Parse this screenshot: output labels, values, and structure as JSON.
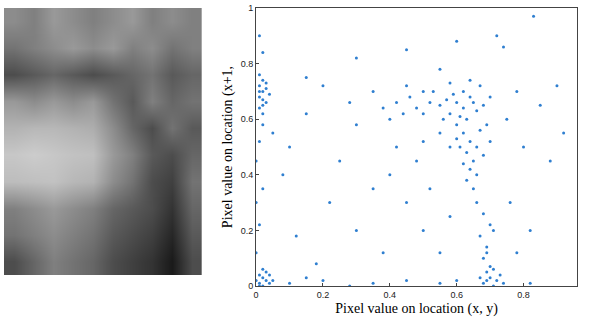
{
  "chart_data": [
    {
      "type": "heatmap",
      "cells": [
        [
          0.55,
          0.5,
          0.6,
          0.55,
          0.5,
          0.55,
          0.6,
          0.5,
          0.55,
          0.5
        ],
        [
          0.45,
          0.5,
          0.55,
          0.6,
          0.55,
          0.6,
          0.5,
          0.55,
          0.45,
          0.5
        ],
        [
          0.3,
          0.35,
          0.4,
          0.35,
          0.3,
          0.35,
          0.4,
          0.45,
          0.35,
          0.4
        ],
        [
          0.6,
          0.55,
          0.6,
          0.55,
          0.6,
          0.45,
          0.35,
          0.5,
          0.4,
          0.45
        ],
        [
          0.7,
          0.72,
          0.72,
          0.7,
          0.68,
          0.55,
          0.4,
          0.3,
          0.45,
          0.35
        ],
        [
          0.78,
          0.8,
          0.78,
          0.76,
          0.75,
          0.6,
          0.5,
          0.35,
          0.3,
          0.4
        ],
        [
          0.74,
          0.75,
          0.76,
          0.72,
          0.7,
          0.55,
          0.45,
          0.3,
          0.25,
          0.45
        ],
        [
          0.5,
          0.55,
          0.6,
          0.55,
          0.5,
          0.4,
          0.35,
          0.3,
          0.2,
          0.4
        ],
        [
          0.45,
          0.5,
          0.55,
          0.5,
          0.45,
          0.35,
          0.3,
          0.25,
          0.15,
          0.35
        ],
        [
          0.3,
          0.4,
          0.5,
          0.45,
          0.4,
          0.3,
          0.25,
          0.2,
          0.1,
          0.3
        ]
      ],
      "zlim": [
        0,
        1
      ],
      "tick_labels": false
    },
    {
      "type": "scatter",
      "xlabel": "Pixel value on location (x, y)",
      "ylabel": "Pixel value on location (x+1,",
      "color": "#2f7fd0",
      "marker": "dot",
      "grid": false,
      "xlim": [
        0,
        0.96
      ],
      "ylim": [
        0,
        1
      ],
      "xticks": [
        0,
        0.2,
        0.4,
        0.6,
        0.8
      ],
      "yticks": [
        0,
        0.2,
        0.4,
        0.6,
        0.8,
        1
      ],
      "x": [
        0.01,
        0.02,
        0.01,
        0.03,
        0.02,
        0.01,
        0.03,
        0.02,
        0.01,
        0.04,
        0.02,
        0.03,
        0.01,
        0.02,
        0.01,
        0.02,
        0.03,
        0.01,
        0.04,
        0.02,
        0.03,
        0.05,
        0.0,
        0.02,
        0.04,
        0.01,
        0.68,
        0.7,
        0.72,
        0.69,
        0.71,
        0.73,
        0.67,
        0.7,
        0.74,
        0.71,
        0.69,
        0.0,
        0.01,
        0.02,
        0.0,
        0.01,
        0.02,
        0.01,
        0.0,
        0.02,
        0.1,
        0.2,
        0.28,
        0.35,
        0.45,
        0.55,
        0.6,
        0.82,
        0.15,
        0.68,
        0.69,
        0.67,
        0.7,
        0.68,
        0.66,
        0.69,
        0.71,
        0.55,
        0.58,
        0.6,
        0.62,
        0.64,
        0.61,
        0.57,
        0.63,
        0.66,
        0.59,
        0.65,
        0.62,
        0.68,
        0.56,
        0.6,
        0.7,
        0.52,
        0.5,
        0.48,
        0.46,
        0.44,
        0.42,
        0.4,
        0.53,
        0.67,
        0.64,
        0.58,
        0.5,
        0.45,
        0.38,
        0.62,
        0.64,
        0.66,
        0.63,
        0.65,
        0.61,
        0.67,
        0.6,
        0.68,
        0.64,
        0.62,
        0.66,
        0.7,
        0.58,
        0.69,
        0.63,
        0.65,
        0.55,
        0.5,
        0.1,
        0.15,
        0.2,
        0.25,
        0.3,
        0.35,
        0.22,
        0.3,
        0.4,
        0.45,
        0.5,
        0.55,
        0.38,
        0.12,
        0.18,
        0.42,
        0.48,
        0.35,
        0.28,
        0.08,
        0.75,
        0.78,
        0.8,
        0.85,
        0.9,
        0.76,
        0.82,
        0.72,
        0.74,
        0.6,
        0.45,
        0.3,
        0.55,
        0.88,
        0.92,
        0.78,
        0.15,
        0.05,
        0.52,
        0.58,
        0.83
      ],
      "y": [
        0.72,
        0.7,
        0.68,
        0.66,
        0.74,
        0.64,
        0.71,
        0.62,
        0.76,
        0.69,
        0.67,
        0.73,
        0.7,
        0.65,
        0.01,
        0.03,
        0.02,
        0.04,
        0.01,
        0.0,
        0.05,
        0.02,
        0.02,
        0.06,
        0.04,
        0.0,
        0.01,
        0.03,
        0.02,
        0.05,
        0.0,
        0.04,
        0.03,
        0.07,
        0.01,
        0.06,
        0.02,
        0.12,
        0.22,
        0.35,
        0.45,
        0.52,
        0.84,
        0.9,
        0.3,
        0.58,
        0.01,
        0.02,
        0.0,
        0.01,
        0.02,
        0.01,
        0.02,
        0.01,
        0.03,
        0.1,
        0.14,
        0.18,
        0.22,
        0.26,
        0.3,
        0.12,
        0.2,
        0.65,
        0.62,
        0.66,
        0.64,
        0.68,
        0.61,
        0.67,
        0.6,
        0.63,
        0.69,
        0.66,
        0.7,
        0.65,
        0.6,
        0.58,
        0.68,
        0.66,
        0.62,
        0.64,
        0.68,
        0.62,
        0.66,
        0.6,
        0.7,
        0.72,
        0.74,
        0.73,
        0.7,
        0.72,
        0.64,
        0.55,
        0.52,
        0.5,
        0.48,
        0.45,
        0.5,
        0.56,
        0.53,
        0.47,
        0.42,
        0.44,
        0.4,
        0.52,
        0.5,
        0.58,
        0.38,
        0.35,
        0.55,
        0.52,
        0.5,
        0.62,
        0.72,
        0.45,
        0.58,
        0.7,
        0.3,
        0.2,
        0.4,
        0.3,
        0.2,
        0.12,
        0.12,
        0.18,
        0.08,
        0.5,
        0.45,
        0.35,
        0.66,
        0.4,
        0.6,
        0.7,
        0.5,
        0.65,
        0.72,
        0.3,
        0.2,
        0.9,
        0.86,
        0.88,
        0.85,
        0.82,
        0.78,
        0.45,
        0.55,
        0.12,
        0.75,
        0.55,
        0.35,
        0.25,
        0.97
      ]
    }
  ]
}
